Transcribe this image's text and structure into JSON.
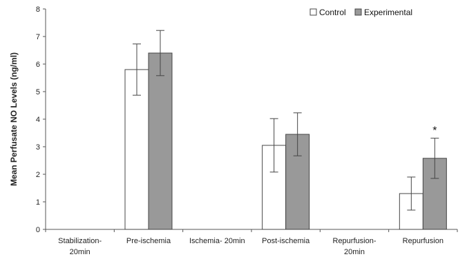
{
  "chart_data": {
    "type": "bar",
    "title": "",
    "xlabel": "",
    "ylabel": "Mean Perfusate NO Levels (ng/ml)",
    "ylim": [
      0,
      8
    ],
    "yticks": [
      "0",
      "1",
      "2",
      "3",
      "4",
      "5",
      "6",
      "7",
      "8"
    ],
    "grid": false,
    "legend_position": "top-right",
    "categories": [
      [
        "Stabilization-",
        "20min"
      ],
      [
        "Pre-ischemia"
      ],
      [
        "Ischemia- 20min"
      ],
      [
        "Post-ischemia"
      ],
      [
        "Repurfusion-",
        "20min"
      ],
      [
        "Repurfusion"
      ]
    ],
    "series": [
      {
        "name": "Control",
        "color": "#ffffff",
        "values": [
          null,
          5.8,
          null,
          3.05,
          null,
          1.3
        ],
        "errors": [
          null,
          0.93,
          null,
          0.97,
          null,
          0.6
        ]
      },
      {
        "name": "Experimental",
        "color": "#999999",
        "values": [
          null,
          6.4,
          null,
          3.45,
          null,
          2.58
        ],
        "errors": [
          null,
          0.82,
          null,
          0.78,
          null,
          0.73
        ]
      }
    ],
    "annotations": [
      {
        "text": "*",
        "category_index": 5,
        "series_index": 1
      }
    ]
  }
}
